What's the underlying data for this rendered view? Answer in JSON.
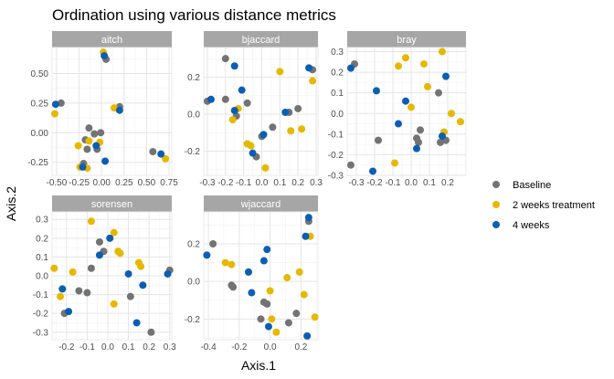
{
  "chart_data": {
    "type": "scatter",
    "title": "Ordination using various distance metrics",
    "xlabel": "Axis.1",
    "ylabel": "Axis.2",
    "grid": true,
    "legend": {
      "placement": "right",
      "entries": [
        {
          "label": "Baseline",
          "color": "#737373"
        },
        {
          "label": "2 weeks treatment",
          "color": "#E7B800"
        },
        {
          "label": "4 weeks",
          "color": "#0A5FB4"
        }
      ]
    },
    "panels": [
      {
        "name": "aitch",
        "xlim": [
          -0.55,
          0.78
        ],
        "ylim": [
          -0.36,
          0.72
        ],
        "xticks": [
          -0.5,
          -0.25,
          0.0,
          0.25,
          0.5,
          0.75
        ],
        "xticklabels": [
          "-0.50",
          "-0.25",
          "0.00",
          "0.25",
          "0.50",
          "0.75"
        ],
        "yticks": [
          -0.25,
          0.0,
          0.25,
          0.5
        ],
        "yticklabels": [
          "-0.25",
          "0.00",
          "0.25",
          "0.50"
        ],
        "points": [
          {
            "g": 0,
            "x": -0.45,
            "y": 0.25
          },
          {
            "g": 0,
            "x": 0.05,
            "y": 0.62
          },
          {
            "g": 0,
            "x": -0.18,
            "y": -0.06
          },
          {
            "g": 0,
            "x": -0.16,
            "y": -0.14
          },
          {
            "g": 0,
            "x": -0.14,
            "y": 0.04
          },
          {
            "g": 0,
            "x": -0.08,
            "y": -0.01
          },
          {
            "g": 0,
            "x": -0.01,
            "y": 0.0
          },
          {
            "g": 0,
            "x": -0.05,
            "y": -0.14
          },
          {
            "g": 0,
            "x": 0.2,
            "y": 0.22
          },
          {
            "g": 0,
            "x": 0.57,
            "y": -0.16
          },
          {
            "g": 0,
            "x": -0.2,
            "y": -0.26
          },
          {
            "g": 1,
            "x": -0.52,
            "y": 0.16
          },
          {
            "g": 1,
            "x": 0.02,
            "y": 0.68
          },
          {
            "g": 1,
            "x": -0.26,
            "y": -0.11
          },
          {
            "g": 1,
            "x": -0.14,
            "y": -0.07
          },
          {
            "g": 1,
            "x": -0.02,
            "y": -0.08
          },
          {
            "g": 1,
            "x": 0.14,
            "y": 0.21
          },
          {
            "g": 1,
            "x": -0.24,
            "y": -0.29
          },
          {
            "g": 1,
            "x": -0.16,
            "y": -0.3
          },
          {
            "g": 1,
            "x": 0.71,
            "y": -0.22
          },
          {
            "g": 2,
            "x": -0.51,
            "y": 0.24
          },
          {
            "g": 2,
            "x": 0.03,
            "y": 0.65
          },
          {
            "g": 2,
            "x": 0.2,
            "y": 0.19
          },
          {
            "g": 2,
            "x": -0.06,
            "y": -0.11
          },
          {
            "g": 2,
            "x": 0.04,
            "y": -0.24
          },
          {
            "g": 2,
            "x": -0.21,
            "y": -0.29
          },
          {
            "g": 2,
            "x": 0.66,
            "y": -0.18
          }
        ]
      },
      {
        "name": "bjaccard",
        "xlim": [
          -0.32,
          0.31
        ],
        "ylim": [
          -0.33,
          0.36
        ],
        "xticks": [
          -0.3,
          -0.2,
          -0.1,
          0.0,
          0.1,
          0.2,
          0.3
        ],
        "xticklabels": [
          "-0.3",
          "-0.2",
          "-0.1",
          "0.0",
          "0.1",
          "0.2",
          "0.3"
        ],
        "yticks": [
          -0.2,
          0.0,
          0.2
        ],
        "yticklabels": [
          "-0.2",
          "0.0",
          "0.2"
        ],
        "points": [
          {
            "g": 0,
            "x": -0.2,
            "y": 0.3
          },
          {
            "g": 0,
            "x": -0.3,
            "y": 0.07
          },
          {
            "g": 0,
            "x": -0.2,
            "y": 0.08
          },
          {
            "g": 0,
            "x": -0.14,
            "y": -0.01
          },
          {
            "g": 0,
            "x": -0.08,
            "y": 0.06
          },
          {
            "g": 0,
            "x": 0.06,
            "y": -0.07
          },
          {
            "g": 0,
            "x": 0.0,
            "y": -0.12
          },
          {
            "g": 0,
            "x": 0.15,
            "y": 0.01
          },
          {
            "g": 0,
            "x": 0.2,
            "y": 0.03
          },
          {
            "g": 0,
            "x": 0.28,
            "y": 0.24
          },
          {
            "g": 0,
            "x": -0.03,
            "y": -0.23
          },
          {
            "g": 1,
            "x": -0.13,
            "y": 0.03
          },
          {
            "g": 1,
            "x": -0.16,
            "y": -0.03
          },
          {
            "g": 1,
            "x": -0.08,
            "y": -0.16
          },
          {
            "g": 1,
            "x": -0.06,
            "y": -0.17
          },
          {
            "g": 1,
            "x": 0.02,
            "y": -0.29
          },
          {
            "g": 1,
            "x": 0.16,
            "y": -0.09
          },
          {
            "g": 1,
            "x": 0.22,
            "y": -0.08
          },
          {
            "g": 1,
            "x": 0.28,
            "y": 0.18
          },
          {
            "g": 1,
            "x": 0.1,
            "y": 0.23
          },
          {
            "g": 2,
            "x": -0.28,
            "y": 0.08
          },
          {
            "g": 2,
            "x": -0.15,
            "y": 0.26
          },
          {
            "g": 2,
            "x": -0.11,
            "y": 0.13
          },
          {
            "g": 2,
            "x": -0.15,
            "y": 0.02
          },
          {
            "g": 2,
            "x": 0.01,
            "y": -0.11
          },
          {
            "g": 2,
            "x": -0.05,
            "y": -0.21
          },
          {
            "g": 2,
            "x": 0.13,
            "y": 0.01
          },
          {
            "g": 2,
            "x": 0.26,
            "y": 0.25
          }
        ]
      },
      {
        "name": "bray",
        "xlim": [
          -0.35,
          0.3
        ],
        "ylim": [
          -0.3,
          0.32
        ],
        "xticks": [
          -0.3,
          -0.2,
          -0.1,
          0.0,
          0.1,
          0.2
        ],
        "xticklabels": [
          "-0.3",
          "-0.2",
          "-0.1",
          "0.0",
          "0.1",
          "0.2"
        ],
        "yticks": [
          -0.3,
          -0.2,
          -0.1,
          0.0,
          0.1,
          0.2,
          0.3
        ],
        "yticklabels": [
          "-0.3",
          "-0.2",
          "-0.1",
          "0.0",
          "0.1",
          "0.2",
          "0.3"
        ],
        "points": [
          {
            "g": 0,
            "x": -0.31,
            "y": 0.24
          },
          {
            "g": 0,
            "x": -0.33,
            "y": -0.25
          },
          {
            "g": 0,
            "x": -0.18,
            "y": -0.13
          },
          {
            "g": 0,
            "x": 0.04,
            "y": -0.14
          },
          {
            "g": 0,
            "x": 0.05,
            "y": -0.08
          },
          {
            "g": 0,
            "x": 0.03,
            "y": -0.12
          },
          {
            "g": 0,
            "x": 0.16,
            "y": -0.14
          },
          {
            "g": 0,
            "x": 0.15,
            "y": 0.1
          },
          {
            "g": 0,
            "x": 0.19,
            "y": -0.13
          },
          {
            "g": 1,
            "x": -0.07,
            "y": 0.23
          },
          {
            "g": 1,
            "x": -0.03,
            "y": 0.27
          },
          {
            "g": 1,
            "x": 0.07,
            "y": 0.24
          },
          {
            "g": 1,
            "x": 0.09,
            "y": 0.13
          },
          {
            "g": 1,
            "x": 0.17,
            "y": 0.3
          },
          {
            "g": 1,
            "x": 0.22,
            "y": 0.0
          },
          {
            "g": 1,
            "x": 0.27,
            "y": -0.04
          },
          {
            "g": 1,
            "x": 0.18,
            "y": -0.09
          },
          {
            "g": 1,
            "x": -0.09,
            "y": -0.24
          },
          {
            "g": 1,
            "x": 0.0,
            "y": 0.03
          },
          {
            "g": 2,
            "x": -0.33,
            "y": 0.22
          },
          {
            "g": 2,
            "x": -0.19,
            "y": 0.11
          },
          {
            "g": 2,
            "x": -0.07,
            "y": -0.05
          },
          {
            "g": 2,
            "x": -0.03,
            "y": 0.06
          },
          {
            "g": 2,
            "x": 0.03,
            "y": -0.17
          },
          {
            "g": 2,
            "x": -0.21,
            "y": -0.28
          },
          {
            "g": 2,
            "x": 0.19,
            "y": 0.18
          },
          {
            "g": 2,
            "x": 0.17,
            "y": -0.11
          }
        ]
      },
      {
        "name": "sorensen",
        "xlim": [
          -0.27,
          0.31
        ],
        "ylim": [
          -0.34,
          0.34
        ],
        "xticks": [
          -0.2,
          -0.1,
          0.0,
          0.1,
          0.2,
          0.3
        ],
        "xticklabels": [
          "-0.2",
          "-0.1",
          "0.0",
          "0.1",
          "0.2",
          "0.3"
        ],
        "yticks": [
          -0.3,
          -0.2,
          -0.1,
          0.0,
          0.1,
          0.2,
          0.3
        ],
        "yticklabels": [
          "-0.3",
          "-0.2",
          "-0.1",
          "0.0",
          "0.1",
          "0.2",
          "0.3"
        ],
        "points": [
          {
            "g": 0,
            "x": -0.04,
            "y": 0.18
          },
          {
            "g": 0,
            "x": -0.08,
            "y": 0.04
          },
          {
            "g": 0,
            "x": -0.14,
            "y": -0.08
          },
          {
            "g": 0,
            "x": -0.1,
            "y": -0.09
          },
          {
            "g": 0,
            "x": -0.02,
            "y": 0.13
          },
          {
            "g": 0,
            "x": 0.11,
            "y": -0.11
          },
          {
            "g": 0,
            "x": 0.21,
            "y": -0.3
          },
          {
            "g": 0,
            "x": 0.3,
            "y": 0.03
          },
          {
            "g": 0,
            "x": -0.21,
            "y": -0.2
          },
          {
            "g": 1,
            "x": -0.26,
            "y": 0.04
          },
          {
            "g": 1,
            "x": -0.23,
            "y": -0.11
          },
          {
            "g": 1,
            "x": -0.17,
            "y": 0.02
          },
          {
            "g": 1,
            "x": -0.08,
            "y": 0.29
          },
          {
            "g": 1,
            "x": 0.03,
            "y": 0.23
          },
          {
            "g": 1,
            "x": 0.05,
            "y": 0.13
          },
          {
            "g": 1,
            "x": 0.06,
            "y": 0.12
          },
          {
            "g": 1,
            "x": 0.15,
            "y": 0.07
          },
          {
            "g": 1,
            "x": 0.16,
            "y": 0.05
          },
          {
            "g": 1,
            "x": 0.03,
            "y": -0.15
          },
          {
            "g": 2,
            "x": -0.22,
            "y": -0.07
          },
          {
            "g": 2,
            "x": -0.19,
            "y": -0.19
          },
          {
            "g": 2,
            "x": -0.04,
            "y": 0.11
          },
          {
            "g": 2,
            "x": 0.01,
            "y": 0.2
          },
          {
            "g": 2,
            "x": 0.1,
            "y": 0.01
          },
          {
            "g": 2,
            "x": 0.17,
            "y": -0.05
          },
          {
            "g": 2,
            "x": 0.14,
            "y": -0.25
          },
          {
            "g": 2,
            "x": 0.29,
            "y": 0.01
          }
        ]
      },
      {
        "name": "wjaccard",
        "xlim": [
          -0.43,
          0.31
        ],
        "ylim": [
          -0.31,
          0.37
        ],
        "xticks": [
          -0.4,
          -0.2,
          0.0,
          0.2
        ],
        "xticklabels": [
          "-0.4",
          "-0.2",
          "0.0",
          "0.2"
        ],
        "yticks": [
          -0.2,
          0.0,
          0.2
        ],
        "yticklabels": [
          "-0.2",
          "0.0",
          "0.2"
        ],
        "points": [
          {
            "g": 0,
            "x": -0.37,
            "y": 0.2
          },
          {
            "g": 0,
            "x": -0.24,
            "y": -0.03
          },
          {
            "g": 0,
            "x": -0.25,
            "y": -0.02
          },
          {
            "g": 0,
            "x": -0.04,
            "y": -0.11
          },
          {
            "g": 0,
            "x": -0.02,
            "y": -0.12
          },
          {
            "g": 0,
            "x": -0.06,
            "y": -0.2
          },
          {
            "g": 0,
            "x": 0.12,
            "y": -0.22
          },
          {
            "g": 0,
            "x": 0.17,
            "y": -0.17
          },
          {
            "g": 0,
            "x": 0.25,
            "y": 0.32
          },
          {
            "g": 1,
            "x": -0.29,
            "y": 0.1
          },
          {
            "g": 1,
            "x": -0.25,
            "y": 0.09
          },
          {
            "g": 1,
            "x": 0.0,
            "y": -0.05
          },
          {
            "g": 1,
            "x": 0.01,
            "y": -0.2
          },
          {
            "g": 1,
            "x": 0.04,
            "y": -0.27
          },
          {
            "g": 1,
            "x": 0.11,
            "y": 0.02
          },
          {
            "g": 1,
            "x": 0.19,
            "y": 0.05
          },
          {
            "g": 1,
            "x": 0.22,
            "y": -0.07
          },
          {
            "g": 1,
            "x": 0.26,
            "y": 0.24
          },
          {
            "g": 1,
            "x": 0.29,
            "y": -0.19
          },
          {
            "g": 2,
            "x": -0.41,
            "y": 0.14
          },
          {
            "g": 2,
            "x": -0.14,
            "y": 0.05
          },
          {
            "g": 2,
            "x": -0.12,
            "y": -0.06
          },
          {
            "g": 2,
            "x": -0.02,
            "y": 0.17
          },
          {
            "g": 2,
            "x": -0.04,
            "y": 0.11
          },
          {
            "g": 2,
            "x": -0.01,
            "y": -0.24
          },
          {
            "g": 2,
            "x": 0.23,
            "y": 0.24
          },
          {
            "g": 2,
            "x": 0.25,
            "y": 0.34
          },
          {
            "g": 2,
            "x": 0.24,
            "y": -0.29
          }
        ]
      }
    ]
  }
}
